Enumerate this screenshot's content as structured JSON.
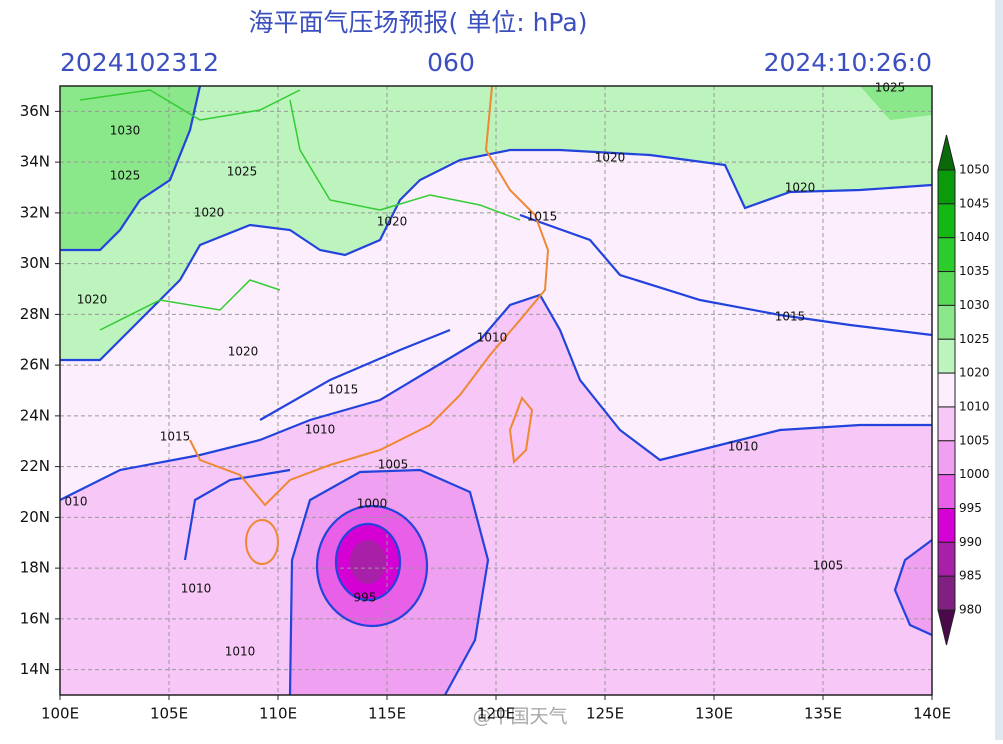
{
  "header": {
    "title": "海平面气压场预报( 单位: hPa)",
    "run": "2024102312",
    "forecast_hour": "060",
    "valid": "2024:10:26:0"
  },
  "map": {
    "lonlim": [
      100,
      140
    ],
    "latlim": [
      13,
      37
    ],
    "lon_ticks": [
      {
        "value": 100,
        "label": "100E"
      },
      {
        "value": 105,
        "label": "105E"
      },
      {
        "value": 110,
        "label": "110E"
      },
      {
        "value": 115,
        "label": "115E"
      },
      {
        "value": 120,
        "label": "120E"
      },
      {
        "value": 125,
        "label": "125E"
      },
      {
        "value": 130,
        "label": "130E"
      },
      {
        "value": 135,
        "label": "135E"
      },
      {
        "value": 140,
        "label": "140E"
      }
    ],
    "lat_ticks": [
      {
        "value": 36,
        "label": "36N"
      },
      {
        "value": 34,
        "label": "34N"
      },
      {
        "value": 32,
        "label": "32N"
      },
      {
        "value": 30,
        "label": "30N"
      },
      {
        "value": 28,
        "label": "28N"
      },
      {
        "value": 26,
        "label": "26N"
      },
      {
        "value": 24,
        "label": "24N"
      },
      {
        "value": 22,
        "label": "22N"
      },
      {
        "value": 20,
        "label": "20N"
      },
      {
        "value": 18,
        "label": "18N"
      },
      {
        "value": 16,
        "label": "16N"
      },
      {
        "value": 14,
        "label": "14N"
      }
    ],
    "grid": true
  },
  "colorbar": {
    "levels": [
      1050,
      1045,
      1040,
      1035,
      1030,
      1025,
      1020,
      1010,
      1005,
      1000,
      995,
      990,
      985,
      980
    ],
    "colors": [
      "#0a6a0a",
      "#0a9a0a",
      "#14b814",
      "#2ccc2c",
      "#58da58",
      "#8ae88a",
      "#bdf3bd",
      "#fdeefd",
      "#f7c8f7",
      "#f0a0f0",
      "#e860e8",
      "#d400d4",
      "#a820a8",
      "#802080",
      "#4a0a4a"
    ]
  },
  "contour_labels": [
    "1030",
    "1025",
    "1025",
    "1020",
    "1020",
    "1020",
    "1020",
    "1015",
    "1020",
    "1020",
    "1025",
    "1015",
    "1010",
    "1015",
    "1010",
    "1015",
    "1005",
    "1000",
    "995",
    "1010",
    "1005",
    "010",
    "1010",
    "1010"
  ],
  "watermark": "@中国天气"
}
